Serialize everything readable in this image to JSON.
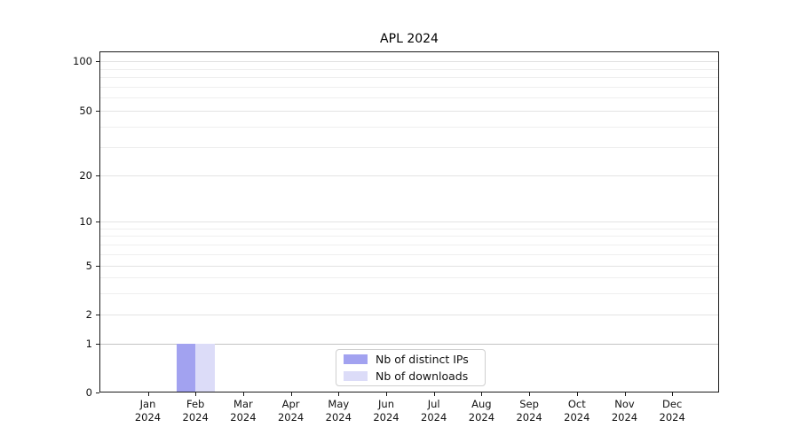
{
  "chart_data": {
    "type": "bar",
    "title": "APL 2024",
    "categories": [
      "Jan 2024",
      "Feb 2024",
      "Mar 2024",
      "Apr 2024",
      "May 2024",
      "Jun 2024",
      "Jul 2024",
      "Aug 2024",
      "Sep 2024",
      "Oct 2024",
      "Nov 2024",
      "Dec 2024"
    ],
    "series": [
      {
        "name": "Nb of distinct IPs",
        "color": "#a2a2f0",
        "values": [
          0,
          1,
          0,
          0,
          0,
          0,
          0,
          0,
          0,
          0,
          0,
          0
        ]
      },
      {
        "name": "Nb of downloads",
        "color": "#dcdcf8",
        "values": [
          0,
          1,
          0,
          0,
          0,
          0,
          0,
          0,
          0,
          0,
          0,
          0
        ]
      }
    ],
    "y_scale": "symlog",
    "y_ticks": [
      0,
      1,
      2,
      5,
      10,
      20,
      50,
      100
    ],
    "y_minor_ticks": [
      3,
      4,
      6,
      7,
      8,
      9,
      30,
      40,
      60,
      70,
      80,
      90
    ],
    "xlabel": "",
    "ylabel": "",
    "grid": "horizontal",
    "legend_position": "lower center"
  }
}
